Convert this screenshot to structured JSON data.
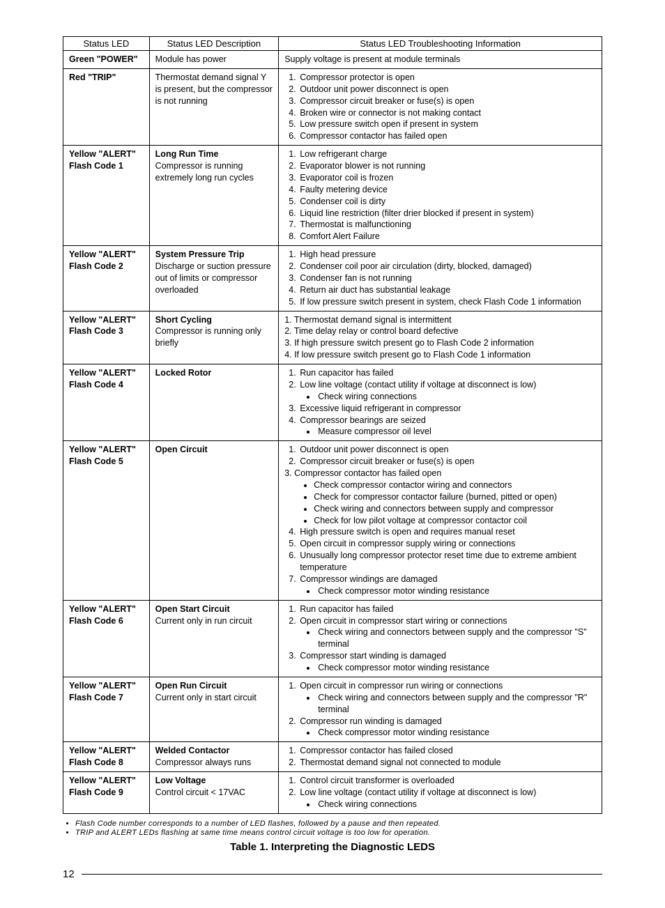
{
  "headers": {
    "led": "Status LED",
    "desc": "Status LED Description",
    "trouble": "Status LED Troubleshooting Information"
  },
  "rows": [
    {
      "led_lines": [
        "Green \"POWER\""
      ],
      "desc_title": "",
      "desc_body": "Module has power",
      "trouble_type": "plain",
      "trouble_plain": "Supply voltage is present at module terminals"
    },
    {
      "led_lines": [
        "Red \"TRIP\""
      ],
      "desc_title": "",
      "desc_body": "Thermostat demand signal Y is present, but the compressor is not running",
      "trouble_type": "ol",
      "items": [
        {
          "t": "Compressor protector is open"
        },
        {
          "t": "Outdoor unit power disconnect is open"
        },
        {
          "t": "Compressor circuit breaker or fuse(s) is open"
        },
        {
          "t": "Broken wire or connector is not making contact"
        },
        {
          "t": "Low pressure switch open if present in system"
        },
        {
          "t": "Compressor contactor has failed open"
        }
      ]
    },
    {
      "led_lines": [
        "Yellow \"ALERT\"",
        "Flash Code 1"
      ],
      "desc_title": "Long Run Time",
      "desc_body": "Compressor is running extremely long run cycles",
      "trouble_type": "ol",
      "items": [
        {
          "t": "Low refrigerant charge"
        },
        {
          "t": "Evaporator blower is not running"
        },
        {
          "t": "Evaporator coil is frozen"
        },
        {
          "t": "Faulty metering device"
        },
        {
          "t": "Condenser coil is dirty"
        },
        {
          "t": "Liquid line restriction (filter drier blocked if present in system)"
        },
        {
          "t": "Thermostat is malfunctioning"
        },
        {
          "t": "Comfort Alert Failure"
        }
      ]
    },
    {
      "led_lines": [
        "Yellow \"ALERT\"",
        "Flash Code 2"
      ],
      "desc_title": "System Pressure Trip",
      "desc_body": "Discharge or suction pressure out of limits or compressor overloaded",
      "trouble_type": "ol",
      "items": [
        {
          "t": "High head pressure"
        },
        {
          "t": "Condenser coil poor air circulation (dirty, blocked, damaged)"
        },
        {
          "t": "Condenser fan is not running"
        },
        {
          "t": "Return air duct has substantial leakage"
        },
        {
          "t": "If low pressure switch present in system, check Flash Code 1 information"
        }
      ]
    },
    {
      "led_lines": [
        "Yellow \"ALERT\"",
        "Flash Code 3"
      ],
      "desc_title": "Short Cycling",
      "desc_body": "Compressor is running only briefly",
      "trouble_type": "plainlist",
      "plain_items": [
        "1. Thermostat demand signal is intermittent",
        "2. Time delay relay or control board defective",
        "3. If high pressure switch present go to Flash Code 2 information",
        "4. If low pressure switch present go to Flash Code 1 information"
      ]
    },
    {
      "led_lines": [
        "Yellow \"ALERT\"",
        "Flash Code 4"
      ],
      "desc_title": "Locked Rotor",
      "desc_body": "",
      "trouble_type": "ol",
      "items": [
        {
          "t": "Run capacitor has failed"
        },
        {
          "t": "Low line voltage (contact utility if voltage at disconnect is low)",
          "sub": [
            "Check wiring connections"
          ]
        },
        {
          "t": "Excessive liquid refrigerant in compressor"
        },
        {
          "t": "Compressor bearings are seized",
          "sub": [
            "Measure compressor oil level"
          ]
        }
      ]
    },
    {
      "led_lines": [
        "Yellow \"ALERT\"",
        "Flash Code 5"
      ],
      "desc_title": "Open Circuit",
      "desc_body": "",
      "trouble_type": "custom5"
    },
    {
      "led_lines": [
        "Yellow \"ALERT\"",
        "Flash Code 6"
      ],
      "desc_title": "Open Start Circuit",
      "desc_body": "Current only in run circuit",
      "trouble_type": "ol",
      "items": [
        {
          "t": "Run capacitor has failed"
        },
        {
          "t": "Open circuit in compressor start wiring or connections",
          "sub": [
            "Check wiring and connectors between supply and the compressor \"S\" terminal"
          ]
        },
        {
          "t": "Compressor start winding is damaged",
          "sub": [
            "Check compressor motor winding resistance"
          ]
        }
      ]
    },
    {
      "led_lines": [
        "Yellow \"ALERT\"",
        "Flash Code 7"
      ],
      "desc_title": "Open Run Circuit",
      "desc_body": "Current only in start circuit",
      "trouble_type": "ol",
      "items": [
        {
          "t": "Open circuit in compressor run wiring or connections",
          "sub": [
            "Check wiring and connectors between supply and the compressor \"R\" terminal"
          ]
        },
        {
          "t": "Compressor run winding is damaged",
          "sub": [
            "Check compressor motor winding resistance"
          ]
        }
      ]
    },
    {
      "led_lines": [
        "Yellow \"ALERT\"",
        "Flash Code 8"
      ],
      "desc_title": "Welded Contactor",
      "desc_body": "Compressor always runs",
      "trouble_type": "ol",
      "items": [
        {
          "t": "Compressor contactor has failed closed"
        },
        {
          "t": "Thermostat demand signal not connected to module"
        }
      ]
    },
    {
      "led_lines": [
        "Yellow \"ALERT\"",
        "Flash Code 9"
      ],
      "desc_title": "Low Voltage",
      "desc_body": "Control circuit < 17VAC",
      "trouble_type": "ol",
      "items": [
        {
          "t": "Control circuit transformer is overloaded"
        },
        {
          "t": "Low line voltage (contact utility if voltage at disconnect is low)",
          "sub": [
            "Check wiring connections"
          ]
        }
      ]
    }
  ],
  "custom5": {
    "i1": "Outdoor unit power disconnect is open",
    "i2": "Compressor circuit breaker or fuse(s) is open",
    "i3": "3. Compressor contactor has failed open",
    "s1": "Check compressor contactor wiring and connectors",
    "s2": "Check for compressor contactor failure (burned, pitted or open)",
    "s3": "Check wiring and connectors between supply and compressor",
    "s4": "Check for low pilot voltage at compressor contactor coil",
    "i4": "High pressure switch is open and requires manual reset",
    "i5": "Open circuit in compressor supply wiring or connections",
    "i6": "Unusually long compressor protector reset time due to extreme ambient temperature",
    "i7": "Compressor windings are damaged",
    "s5": "Check compressor motor winding resistance"
  },
  "notes": [
    "Flash Code number corresponds to a number of LED flashes, followed by a pause and then repeated.",
    "TRIP and ALERT LEDs flashing at same time means control circuit voltage is too low for operation."
  ],
  "caption": "Table 1. Interpreting the Diagnostic LEDS",
  "page_number": "12"
}
